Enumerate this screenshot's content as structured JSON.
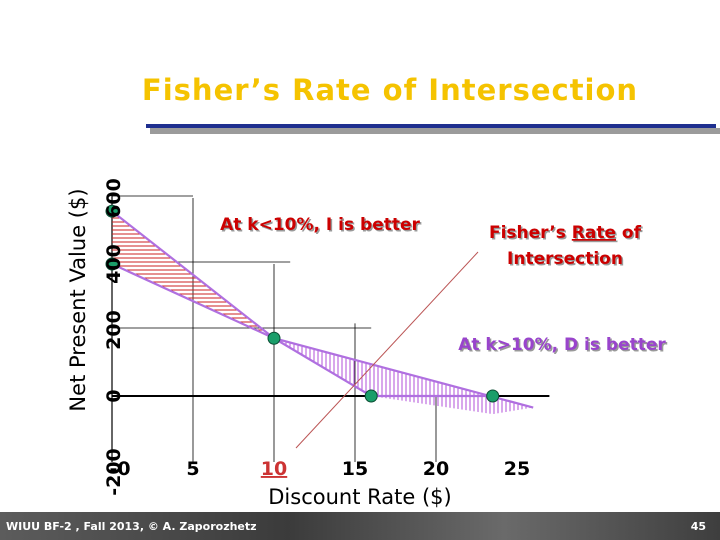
{
  "title": "Fisher’s Rate of Intersection",
  "footer": {
    "left": "WIUU BF-2 , Fall 2013, © A. Zaporozhetz",
    "page": "45"
  },
  "colors": {
    "title": "#f5c300",
    "annotation": "#cc0000",
    "annotation_right": "#9944cc",
    "marker": "#1a9e6a",
    "rule": "#1e2f8f"
  },
  "chart_data": {
    "type": "line",
    "title": "Fisher’s Rate of Intersection",
    "xlabel": "Discount Rate ($)",
    "ylabel": "Net Present Value ($)",
    "x_ticks": [
      "-0",
      "5",
      "10",
      "15",
      "20",
      "25"
    ],
    "x_tick_values": [
      0,
      5,
      10,
      15,
      20,
      25
    ],
    "highlighted_x_tick": "10",
    "y_ticks": [
      "-200",
      "0",
      "200",
      "400",
      "600"
    ],
    "y_tick_values": [
      -200,
      0,
      200,
      400,
      600
    ],
    "xlim": [
      0,
      27
    ],
    "ylim": [
      -200,
      600
    ],
    "grid": true,
    "series": [
      {
        "x": [
          0,
          10,
          26
        ],
        "y": [
          560,
          175,
          -35
        ]
      },
      {
        "x": [
          0,
          10,
          16,
          23.5
        ],
        "y": [
          400,
          175,
          0,
          0
        ]
      }
    ],
    "markers": [
      {
        "x": 0,
        "y": 560
      },
      {
        "x": 0,
        "y": 400
      },
      {
        "x": 10,
        "y": 175
      },
      {
        "x": 16,
        "y": 0
      },
      {
        "x": 23.5,
        "y": 0
      }
    ],
    "annotations": {
      "left": "At k<10%, I is better",
      "right": "At k>10%, D is better",
      "fisher_prefix": "Fisher’s ",
      "fisher_underlined": "Rate",
      "fisher_suffix": " of",
      "fisher_line2": "Intersection"
    }
  }
}
